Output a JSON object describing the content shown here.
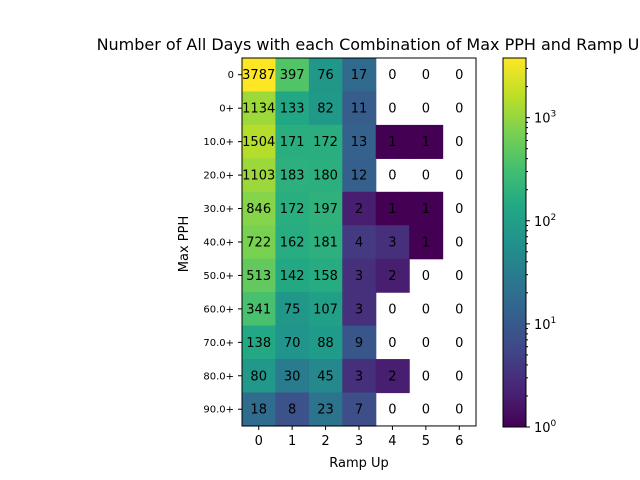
{
  "chart_data": {
    "type": "heatmap",
    "title": "Number of All Days with each Combination of Max PPH and Ramp Up",
    "xlabel": "Ramp Up",
    "ylabel": "Max PPH",
    "x_categories": [
      "0",
      "1",
      "2",
      "3",
      "4",
      "5",
      "6"
    ],
    "y_categories": [
      "0",
      "0+",
      "10.0+",
      "20.0+",
      "30.0+",
      "40.0+",
      "50.0+",
      "60.0+",
      "70.0+",
      "80.0+",
      "90.0+"
    ],
    "values": [
      [
        3787,
        397,
        76,
        17,
        0,
        0,
        0
      ],
      [
        1134,
        133,
        82,
        11,
        0,
        0,
        0
      ],
      [
        1504,
        171,
        172,
        13,
        1,
        1,
        0
      ],
      [
        1103,
        183,
        180,
        12,
        0,
        0,
        0
      ],
      [
        846,
        172,
        197,
        2,
        1,
        1,
        0
      ],
      [
        722,
        162,
        181,
        4,
        3,
        1,
        0
      ],
      [
        513,
        142,
        158,
        3,
        2,
        0,
        0
      ],
      [
        341,
        75,
        107,
        3,
        0,
        0,
        0
      ],
      [
        138,
        70,
        88,
        9,
        0,
        0,
        0
      ],
      [
        80,
        30,
        45,
        3,
        2,
        0,
        0
      ],
      [
        18,
        8,
        23,
        7,
        0,
        0,
        0
      ]
    ],
    "color_scale": "log",
    "colormap": "viridis",
    "zero_cells": "blank",
    "colorbar": {
      "min": 1,
      "max": 3787,
      "ticks": [
        {
          "value": 1,
          "label": "10",
          "exp": "0"
        },
        {
          "value": 10,
          "label": "10",
          "exp": "1"
        },
        {
          "value": 100,
          "label": "10",
          "exp": "2"
        },
        {
          "value": 1000,
          "label": "10",
          "exp": "3"
        }
      ]
    }
  }
}
